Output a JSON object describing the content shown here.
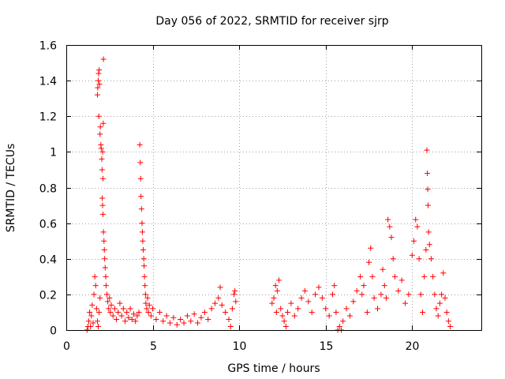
{
  "chart_data": {
    "type": "scatter",
    "title": "Day 056 of 2022, SRMTID for receiver sjrp",
    "xlabel": "GPS time / hours",
    "ylabel": "SRMTID / TECUs",
    "xlim": [
      0,
      24
    ],
    "ylim": [
      0,
      1.6
    ],
    "xticks": [
      0,
      5,
      10,
      15,
      20
    ],
    "xtick_labels": [
      "0",
      "5",
      "10",
      "15",
      "20"
    ],
    "yticks": [
      0,
      0.2,
      0.4,
      0.6,
      0.8,
      1,
      1.2,
      1.4,
      1.6
    ],
    "ytick_labels": [
      "0",
      "0.2",
      "0.4",
      "0.6",
      "0.8",
      "1",
      "1.2",
      "1.4",
      "1.6"
    ],
    "grid": true,
    "marker": "+",
    "color": "#ff0000",
    "series": [
      {
        "name": "sjrp",
        "points": [
          [
            1.2,
            0.0
          ],
          [
            1.25,
            0.02
          ],
          [
            1.3,
            0.05
          ],
          [
            1.35,
            0.1
          ],
          [
            1.4,
            0.02
          ],
          [
            1.45,
            0.08
          ],
          [
            1.5,
            0.14
          ],
          [
            1.55,
            0.04
          ],
          [
            1.6,
            0.2
          ],
          [
            1.65,
            0.3
          ],
          [
            1.7,
            0.25
          ],
          [
            1.75,
            0.12
          ],
          [
            1.8,
            0.05
          ],
          [
            1.85,
            0.02
          ],
          [
            1.9,
            0.1
          ],
          [
            1.95,
            0.18
          ],
          [
            1.8,
            1.32
          ],
          [
            1.82,
            1.36
          ],
          [
            1.85,
            1.4
          ],
          [
            1.87,
            1.44
          ],
          [
            1.9,
            1.46
          ],
          [
            1.92,
            1.38
          ],
          [
            1.88,
            1.2
          ],
          [
            1.95,
            1.1
          ],
          [
            1.97,
            1.14
          ],
          [
            2.0,
            1.04
          ],
          [
            2.02,
            1.02
          ],
          [
            2.05,
            0.96
          ],
          [
            2.07,
            0.9
          ],
          [
            2.1,
            1.0
          ],
          [
            2.12,
            0.85
          ],
          [
            2.15,
            1.52
          ],
          [
            2.14,
            1.16
          ],
          [
            2.08,
            0.74
          ],
          [
            2.1,
            0.7
          ],
          [
            2.12,
            0.65
          ],
          [
            2.15,
            0.55
          ],
          [
            2.18,
            0.5
          ],
          [
            2.2,
            0.45
          ],
          [
            2.22,
            0.4
          ],
          [
            2.25,
            0.35
          ],
          [
            2.28,
            0.3
          ],
          [
            2.3,
            0.25
          ],
          [
            2.35,
            0.2
          ],
          [
            2.4,
            0.16
          ],
          [
            2.45,
            0.12
          ],
          [
            2.5,
            0.18
          ],
          [
            2.55,
            0.1
          ],
          [
            2.6,
            0.14
          ],
          [
            2.7,
            0.08
          ],
          [
            2.8,
            0.12
          ],
          [
            2.9,
            0.06
          ],
          [
            3.0,
            0.1
          ],
          [
            3.1,
            0.15
          ],
          [
            3.2,
            0.08
          ],
          [
            3.3,
            0.12
          ],
          [
            3.4,
            0.05
          ],
          [
            3.5,
            0.1
          ],
          [
            3.6,
            0.07
          ],
          [
            3.7,
            0.12
          ],
          [
            3.8,
            0.06
          ],
          [
            3.9,
            0.09
          ],
          [
            4.0,
            0.05
          ],
          [
            4.1,
            0.08
          ],
          [
            4.2,
            0.1
          ],
          [
            4.25,
            1.04
          ],
          [
            4.28,
            0.94
          ],
          [
            4.3,
            0.85
          ],
          [
            4.32,
            0.75
          ],
          [
            4.35,
            0.68
          ],
          [
            4.38,
            0.6
          ],
          [
            4.4,
            0.55
          ],
          [
            4.42,
            0.5
          ],
          [
            4.45,
            0.45
          ],
          [
            4.48,
            0.4
          ],
          [
            4.5,
            0.36
          ],
          [
            4.52,
            0.3
          ],
          [
            4.55,
            0.25
          ],
          [
            4.58,
            0.2
          ],
          [
            4.6,
            0.15
          ],
          [
            4.65,
            0.12
          ],
          [
            4.7,
            0.18
          ],
          [
            4.75,
            0.1
          ],
          [
            4.8,
            0.14
          ],
          [
            4.9,
            0.08
          ],
          [
            5.0,
            0.12
          ],
          [
            5.2,
            0.06
          ],
          [
            5.4,
            0.1
          ],
          [
            5.6,
            0.05
          ],
          [
            5.8,
            0.08
          ],
          [
            6.0,
            0.04
          ],
          [
            6.2,
            0.07
          ],
          [
            6.4,
            0.03
          ],
          [
            6.6,
            0.06
          ],
          [
            6.8,
            0.04
          ],
          [
            7.0,
            0.08
          ],
          [
            7.2,
            0.05
          ],
          [
            7.4,
            0.09
          ],
          [
            7.6,
            0.04
          ],
          [
            7.8,
            0.07
          ],
          [
            8.0,
            0.1
          ],
          [
            8.2,
            0.06
          ],
          [
            8.4,
            0.12
          ],
          [
            8.6,
            0.15
          ],
          [
            8.8,
            0.18
          ],
          [
            8.9,
            0.24
          ],
          [
            9.0,
            0.14
          ],
          [
            9.2,
            0.1
          ],
          [
            9.4,
            0.06
          ],
          [
            9.5,
            0.02
          ],
          [
            9.6,
            0.12
          ],
          [
            9.7,
            0.2
          ],
          [
            9.75,
            0.22
          ],
          [
            9.8,
            0.16
          ],
          [
            11.9,
            0.15
          ],
          [
            12.0,
            0.18
          ],
          [
            12.1,
            0.25
          ],
          [
            12.15,
            0.1
          ],
          [
            12.2,
            0.22
          ],
          [
            12.3,
            0.28
          ],
          [
            12.4,
            0.12
          ],
          [
            12.5,
            0.08
          ],
          [
            12.6,
            0.05
          ],
          [
            12.7,
            0.02
          ],
          [
            12.8,
            0.1
          ],
          [
            13.0,
            0.15
          ],
          [
            13.2,
            0.08
          ],
          [
            13.4,
            0.12
          ],
          [
            13.6,
            0.18
          ],
          [
            13.8,
            0.22
          ],
          [
            14.0,
            0.16
          ],
          [
            14.2,
            0.1
          ],
          [
            14.4,
            0.2
          ],
          [
            14.6,
            0.24
          ],
          [
            14.8,
            0.18
          ],
          [
            15.0,
            0.12
          ],
          [
            15.2,
            0.08
          ],
          [
            15.4,
            0.2
          ],
          [
            15.5,
            0.25
          ],
          [
            15.6,
            0.1
          ],
          [
            15.7,
            0.0
          ],
          [
            15.8,
            0.02
          ],
          [
            15.9,
            0.0
          ],
          [
            16.0,
            0.05
          ],
          [
            16.2,
            0.12
          ],
          [
            16.4,
            0.08
          ],
          [
            16.6,
            0.16
          ],
          [
            16.8,
            0.22
          ],
          [
            17.0,
            0.3
          ],
          [
            17.1,
            0.2
          ],
          [
            17.2,
            0.25
          ],
          [
            17.4,
            0.1
          ],
          [
            17.5,
            0.38
          ],
          [
            17.6,
            0.46
          ],
          [
            17.7,
            0.3
          ],
          [
            17.8,
            0.18
          ],
          [
            18.0,
            0.12
          ],
          [
            18.2,
            0.2
          ],
          [
            18.3,
            0.34
          ],
          [
            18.4,
            0.25
          ],
          [
            18.5,
            0.18
          ],
          [
            18.6,
            0.62
          ],
          [
            18.7,
            0.58
          ],
          [
            18.8,
            0.52
          ],
          [
            18.9,
            0.4
          ],
          [
            19.0,
            0.3
          ],
          [
            19.2,
            0.22
          ],
          [
            19.4,
            0.28
          ],
          [
            19.6,
            0.15
          ],
          [
            19.8,
            0.2
          ],
          [
            20.0,
            0.42
          ],
          [
            20.1,
            0.5
          ],
          [
            20.2,
            0.62
          ],
          [
            20.3,
            0.58
          ],
          [
            20.4,
            0.4
          ],
          [
            20.5,
            0.2
          ],
          [
            20.6,
            0.1
          ],
          [
            20.7,
            0.3
          ],
          [
            20.8,
            0.45
          ],
          [
            20.85,
            1.01
          ],
          [
            20.88,
            0.88
          ],
          [
            20.9,
            0.79
          ],
          [
            20.92,
            0.7
          ],
          [
            20.95,
            0.55
          ],
          [
            21.0,
            0.48
          ],
          [
            21.1,
            0.4
          ],
          [
            21.2,
            0.3
          ],
          [
            21.3,
            0.2
          ],
          [
            21.4,
            0.12
          ],
          [
            21.5,
            0.08
          ],
          [
            21.6,
            0.15
          ],
          [
            21.7,
            0.2
          ],
          [
            21.8,
            0.32
          ],
          [
            21.9,
            0.18
          ],
          [
            22.0,
            0.1
          ],
          [
            22.1,
            0.05
          ],
          [
            22.2,
            0.02
          ]
        ]
      }
    ]
  }
}
